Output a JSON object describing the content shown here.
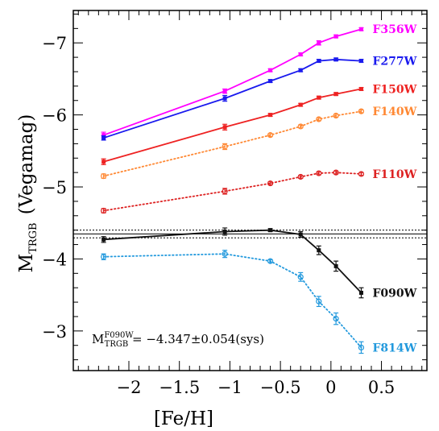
{
  "chart_data": {
    "type": "line",
    "xlabel": "[Fe/H]",
    "ylabel_main": "M",
    "ylabel_sub": "TRGB",
    "ylabel_unit": "(Vegamag)",
    "xlim": [
      -2.55,
      0.95
    ],
    "ylim": [
      -2.45,
      -7.45
    ],
    "y_inverted": true,
    "x_ticks": [
      -2,
      -1.5,
      -1,
      -0.5,
      0,
      0.5
    ],
    "x_tick_labels": [
      "−2",
      "−1.5",
      "−1",
      "−0.5",
      "0",
      "0.5"
    ],
    "y_ticks": [
      -7,
      -6,
      -5,
      -4,
      -3
    ],
    "y_tick_labels": [
      "−7",
      "−6",
      "−5",
      "−4",
      "−3"
    ],
    "reference_line": {
      "value": -4.347,
      "uncertainty": 0.054
    },
    "annotation": {
      "main": "M",
      "sub": "TRGB",
      "sup": "F090W",
      "rest": " = −4.347±0.054(sys)"
    },
    "series": [
      {
        "name": "F356W",
        "color": "#ff00ff",
        "style": "solid",
        "marker": "filled-square",
        "x": [
          -2.25,
          -1.05,
          -0.6,
          -0.3,
          -0.12,
          0.05,
          0.3
        ],
        "y": [
          -5.72,
          -6.33,
          -6.62,
          -6.84,
          -7.0,
          -7.09,
          -7.19
        ],
        "err": [
          0.04,
          0.03,
          0.02,
          0.02,
          0.03,
          0.02,
          0.02
        ]
      },
      {
        "name": "F277W",
        "color": "#1a1aee",
        "style": "solid",
        "marker": "filled-square",
        "x": [
          -2.25,
          -1.05,
          -0.6,
          -0.3,
          -0.12,
          0.05,
          0.3
        ],
        "y": [
          -5.68,
          -6.23,
          -6.47,
          -6.62,
          -6.75,
          -6.77,
          -6.75
        ],
        "err": [
          0.03,
          0.04,
          0.02,
          0.02,
          0.02,
          0.02,
          0.02
        ]
      },
      {
        "name": "F150W",
        "color": "#ee2222",
        "style": "solid",
        "marker": "filled-square",
        "x": [
          -2.25,
          -1.05,
          -0.6,
          -0.3,
          -0.12,
          0.05,
          0.3
        ],
        "y": [
          -5.35,
          -5.83,
          -6.0,
          -6.14,
          -6.24,
          -6.29,
          -6.36
        ],
        "err": [
          0.04,
          0.04,
          0.02,
          0.02,
          0.02,
          0.02,
          0.02
        ]
      },
      {
        "name": "F140W",
        "color": "#ff8833",
        "style": "dotted",
        "marker": "open-circle",
        "x": [
          -2.25,
          -1.05,
          -0.6,
          -0.3,
          -0.12,
          0.05,
          0.3
        ],
        "y": [
          -5.15,
          -5.56,
          -5.72,
          -5.84,
          -5.94,
          -5.99,
          -6.05
        ],
        "err": [
          0.03,
          0.04,
          0.02,
          0.02,
          0.02,
          0.02,
          0.02
        ]
      },
      {
        "name": "F110W",
        "color": "#dd2222",
        "style": "dotted",
        "marker": "open-circle",
        "x": [
          -2.25,
          -1.05,
          -0.6,
          -0.3,
          -0.12,
          0.05,
          0.3
        ],
        "y": [
          -4.67,
          -4.94,
          -5.05,
          -5.14,
          -5.19,
          -5.2,
          -5.18
        ],
        "err": [
          0.03,
          0.04,
          0.02,
          0.02,
          0.02,
          0.02,
          0.02
        ]
      },
      {
        "name": "F090W",
        "color": "#111111",
        "style": "solid",
        "marker": "filled-square",
        "x": [
          -2.25,
          -1.05,
          -0.6,
          -0.3,
          -0.12,
          0.05,
          0.3
        ],
        "y": [
          -4.27,
          -4.38,
          -4.4,
          -4.34,
          -4.12,
          -3.9,
          -3.53
        ],
        "err": [
          0.04,
          0.05,
          0.02,
          0.04,
          0.06,
          0.07,
          0.07
        ]
      },
      {
        "name": "F814W",
        "color": "#2299dd",
        "style": "dotted",
        "marker": "open-circle",
        "x": [
          -2.25,
          -1.05,
          -0.6,
          -0.3,
          -0.12,
          0.05,
          0.3
        ],
        "y": [
          -4.03,
          -4.07,
          -3.97,
          -3.75,
          -3.41,
          -3.17,
          -2.77
        ],
        "err": [
          0.04,
          0.05,
          0.02,
          0.06,
          0.07,
          0.08,
          0.08
        ]
      }
    ]
  }
}
